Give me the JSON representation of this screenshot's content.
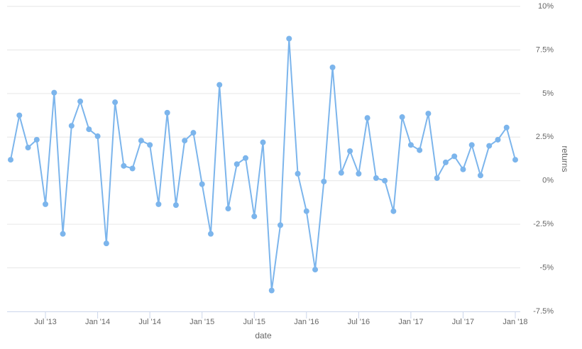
{
  "chart_data": {
    "type": "line",
    "x_title": "date",
    "y_title": "returns",
    "x": [
      "2013-03",
      "2013-04",
      "2013-05",
      "2013-06",
      "2013-07",
      "2013-08",
      "2013-09",
      "2013-10",
      "2013-11",
      "2013-12",
      "2014-01",
      "2014-02",
      "2014-03",
      "2014-04",
      "2014-05",
      "2014-06",
      "2014-07",
      "2014-08",
      "2014-09",
      "2014-10",
      "2014-11",
      "2014-12",
      "2015-01",
      "2015-02",
      "2015-03",
      "2015-04",
      "2015-05",
      "2015-06",
      "2015-07",
      "2015-08",
      "2015-09",
      "2015-10",
      "2015-11",
      "2015-12",
      "2016-01",
      "2016-02",
      "2016-03",
      "2016-04",
      "2016-05",
      "2016-06",
      "2016-07",
      "2016-08",
      "2016-09",
      "2016-10",
      "2016-11",
      "2016-12",
      "2017-01",
      "2017-02",
      "2017-03",
      "2017-04",
      "2017-05",
      "2017-06",
      "2017-07",
      "2017-08",
      "2017-09",
      "2017-10",
      "2017-11",
      "2017-12",
      "2018-01"
    ],
    "series": [
      {
        "name": "returns",
        "color": "#7cb5ec",
        "values": [
          1.2,
          3.75,
          1.9,
          2.35,
          -1.35,
          5.05,
          -3.05,
          3.15,
          4.55,
          2.95,
          2.55,
          -3.6,
          4.5,
          0.85,
          0.7,
          2.3,
          2.05,
          -1.35,
          3.9,
          -1.4,
          2.3,
          2.75,
          -0.2,
          -3.05,
          5.5,
          -1.6,
          0.95,
          1.3,
          -2.05,
          2.2,
          -6.3,
          -2.55,
          8.15,
          0.4,
          -1.75,
          -5.1,
          -0.05,
          6.5,
          0.45,
          1.7,
          0.4,
          3.6,
          0.15,
          0.0,
          -1.75,
          3.65,
          2.05,
          1.75,
          3.85,
          0.15,
          1.05,
          1.4,
          0.65,
          2.05,
          0.3,
          2.0,
          2.35,
          3.05,
          1.2
        ]
      }
    ],
    "xlim": [
      "2013-03",
      "2018-01"
    ],
    "xticks": [
      {
        "value": "2013-07",
        "label": "Jul '13"
      },
      {
        "value": "2014-01",
        "label": "Jan '14"
      },
      {
        "value": "2014-07",
        "label": "Jul '14"
      },
      {
        "value": "2015-01",
        "label": "Jan '15"
      },
      {
        "value": "2015-07",
        "label": "Jul '15"
      },
      {
        "value": "2016-01",
        "label": "Jan '16"
      },
      {
        "value": "2016-07",
        "label": "Jul '16"
      },
      {
        "value": "2017-01",
        "label": "Jan '17"
      },
      {
        "value": "2017-07",
        "label": "Jul '17"
      },
      {
        "value": "2018-01",
        "label": "Jan '18"
      }
    ],
    "ylim": [
      -7.5,
      10
    ],
    "yticks": [
      {
        "value": -7.5,
        "label": "-7.5%"
      },
      {
        "value": -5,
        "label": "-5%"
      },
      {
        "value": -2.5,
        "label": "-2.5%"
      },
      {
        "value": 0,
        "label": "0%"
      },
      {
        "value": 2.5,
        "label": "2.5%"
      },
      {
        "value": 5,
        "label": "5%"
      },
      {
        "value": 7.5,
        "label": "7.5%"
      },
      {
        "value": 10,
        "label": "10%"
      }
    ],
    "grid": true
  }
}
